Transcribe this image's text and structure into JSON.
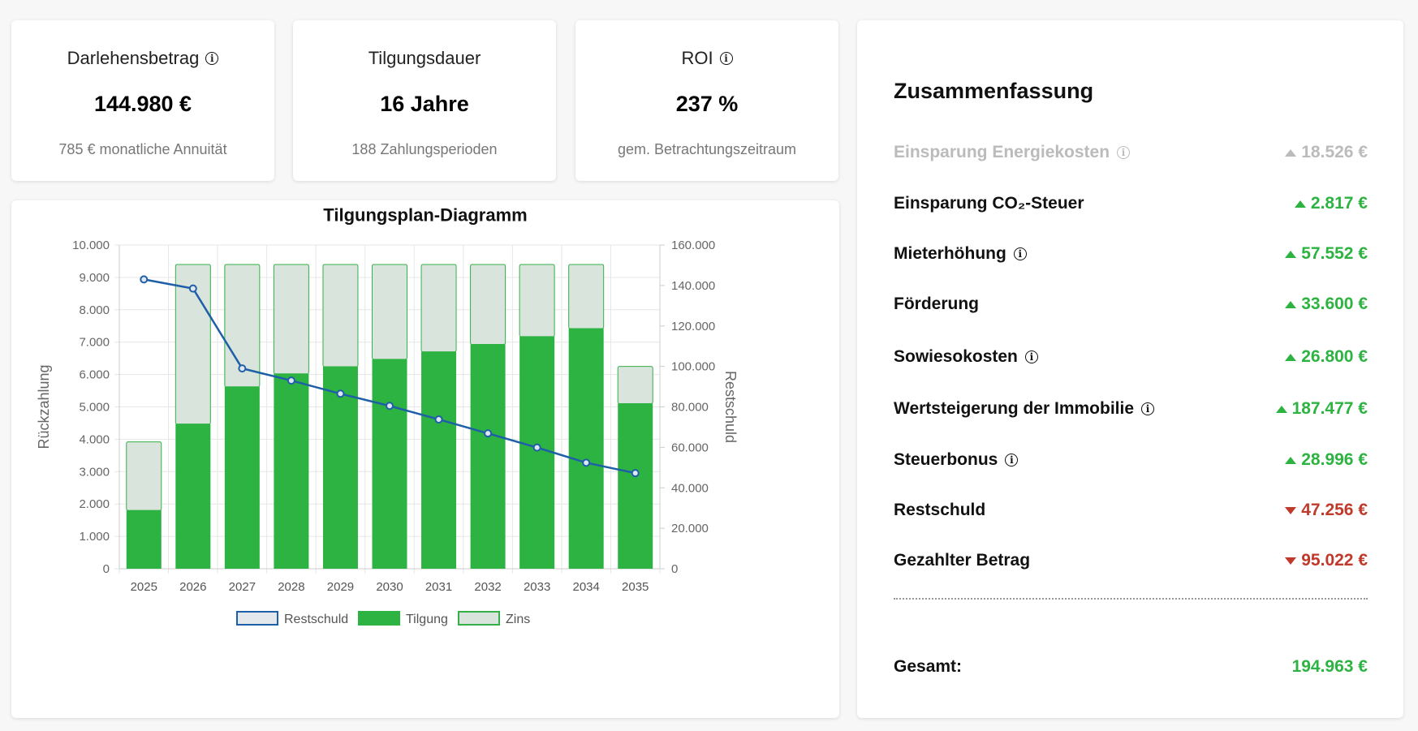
{
  "kpis": [
    {
      "title": "Darlehensbetrag",
      "info": true,
      "value": "144.980 €",
      "sub": "785 € monatliche Annuität"
    },
    {
      "title": "Tilgungsdauer",
      "info": false,
      "value": "16 Jahre",
      "sub": "188 Zahlungsperioden"
    },
    {
      "title": "ROI",
      "info": true,
      "value": "237 %",
      "sub": "gem. Betrachtungszeitraum"
    }
  ],
  "chart_data": {
    "type": "bar",
    "title": "Tilgungsplan-Diagramm",
    "categories": [
      "2025",
      "2026",
      "2027",
      "2028",
      "2029",
      "2030",
      "2031",
      "2032",
      "2033",
      "2034",
      "2035"
    ],
    "series": [
      {
        "name": "Tilgung",
        "type": "bar",
        "stack": "a",
        "axis": "left",
        "color": "#2db341",
        "values": [
          1800,
          4470,
          5620,
          6020,
          6240,
          6470,
          6700,
          6930,
          7170,
          7420,
          5100
        ]
      },
      {
        "name": "Zins",
        "type": "bar",
        "stack": "a",
        "axis": "left",
        "color": "#d8e4dc",
        "values": [
          2120,
          4930,
          3780,
          3380,
          3160,
          2930,
          2700,
          2470,
          2230,
          1980,
          1150
        ]
      },
      {
        "name": "Restschuld",
        "type": "line",
        "axis": "right",
        "color": "#1f5fa8",
        "values": [
          143000,
          138500,
          99000,
          93000,
          86500,
          80500,
          73800,
          66900,
          59900,
          52400,
          47256
        ]
      }
    ],
    "ylabel": "Rückzahlung",
    "y2label": "Restschuld",
    "ylim": [
      0,
      10000
    ],
    "y2lim": [
      0,
      160000
    ],
    "yticks": [
      "0",
      "1.000",
      "2.000",
      "3.000",
      "4.000",
      "5.000",
      "6.000",
      "7.000",
      "8.000",
      "9.000",
      "10.000"
    ],
    "y2ticks": [
      "0",
      "20.000",
      "40.000",
      "60.000",
      "80.000",
      "100.000",
      "120.000",
      "140.000",
      "160.000"
    ],
    "legend": [
      "Restschuld",
      "Tilgung",
      "Zins"
    ],
    "legend_position": "bottom",
    "grid": true
  },
  "summary": {
    "title": "Zusammenfassung",
    "rows": [
      {
        "label": "Einsparung Energiekosten",
        "info": true,
        "amount": "18.526 €",
        "dir": "up",
        "muted": true
      },
      {
        "label": "Einsparung CO₂-Steuer",
        "info": false,
        "amount": "2.817 €",
        "dir": "up",
        "muted": false
      },
      {
        "label": "Mieterhöhung",
        "info": true,
        "amount": "57.552 €",
        "dir": "up",
        "muted": false
      },
      {
        "label": "Förderung",
        "info": false,
        "amount": "33.600 €",
        "dir": "up",
        "muted": false
      },
      {
        "label": "Sowiesokosten",
        "info": true,
        "amount": "26.800 €",
        "dir": "up",
        "muted": false
      },
      {
        "label": "Wertsteigerung der Immobilie",
        "info": true,
        "amount": "187.477 €",
        "dir": "up",
        "muted": false
      },
      {
        "label": "Steuerbonus",
        "info": true,
        "amount": "28.996 €",
        "dir": "up",
        "muted": false
      },
      {
        "label": "Restschuld",
        "info": false,
        "amount": "47.256 €",
        "dir": "down",
        "muted": false
      },
      {
        "label": "Gezahlter Betrag",
        "info": false,
        "amount": "95.022 €",
        "dir": "down",
        "muted": false
      }
    ],
    "total_label": "Gesamt:",
    "total_amount": "194.963 €"
  }
}
